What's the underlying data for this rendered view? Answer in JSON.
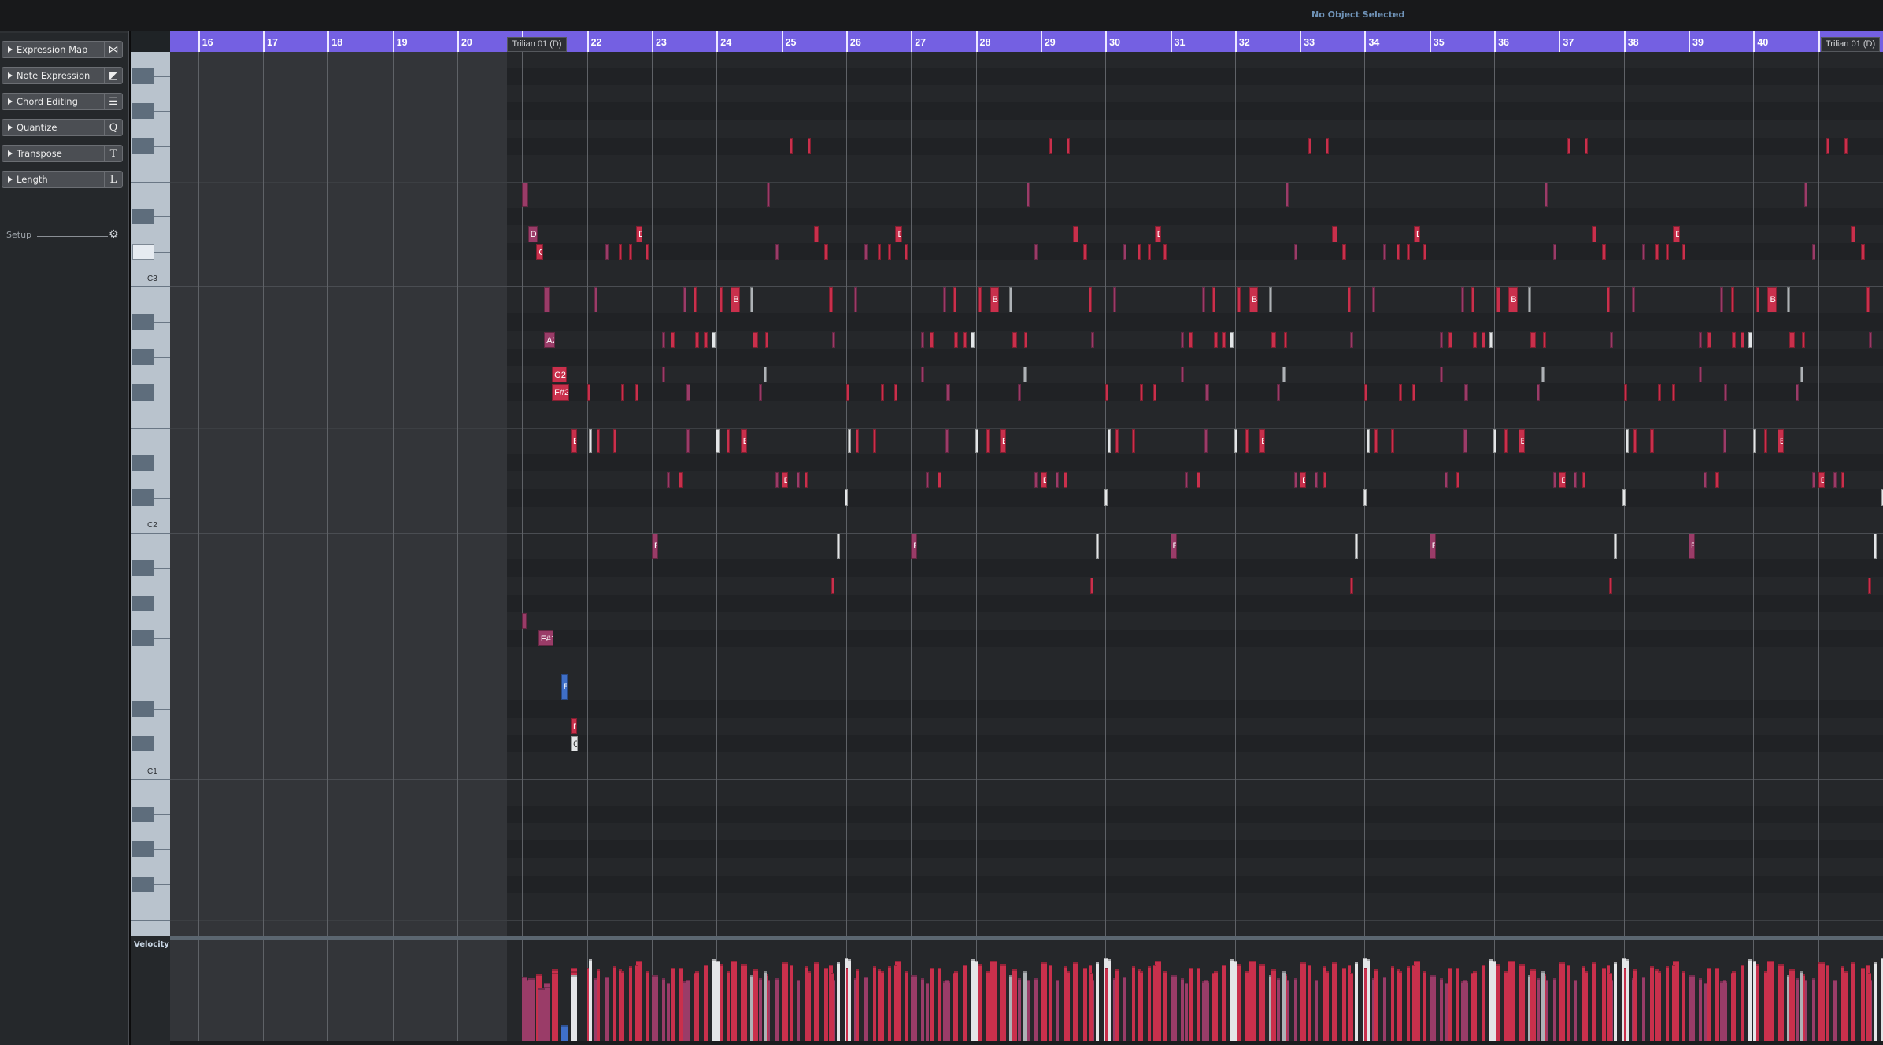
{
  "status": "No Object Selected",
  "inspector": {
    "sections": [
      {
        "label": "Expression Map",
        "icon": "⋈",
        "icon_name": "expression-map-icon"
      },
      {
        "label": "Note Expression",
        "icon": "◩",
        "icon_name": "note-expression-icon"
      },
      {
        "label": "Chord Editing",
        "icon": "☰",
        "icon_name": "chord-editing-icon"
      },
      {
        "label": "Quantize",
        "icon": "Q",
        "icon_name": "quantize-icon"
      },
      {
        "label": "Transpose",
        "icon": "T",
        "icon_name": "transpose-icon"
      },
      {
        "label": "Length",
        "icon": "L",
        "icon_name": "length-icon"
      }
    ],
    "setup_label": "Setup"
  },
  "ruler": {
    "bar_numbers": [
      16,
      17,
      18,
      19,
      20,
      22,
      23,
      24,
      25,
      26,
      27,
      28,
      29,
      30,
      31,
      32,
      33,
      34,
      35,
      36,
      37,
      38,
      39,
      40
    ],
    "ticks": [
      16,
      17,
      18,
      19,
      20,
      21,
      22,
      23,
      24,
      25,
      26,
      27,
      28,
      29,
      30,
      31,
      32,
      33,
      34,
      35,
      36,
      37,
      38,
      39,
      40,
      41
    ]
  },
  "parts": [
    {
      "name": "Trilian 01 (D)",
      "start_bar": 20.77
    },
    {
      "name": "Trilian 01 (D)",
      "start_bar": 41.04
    }
  ],
  "keyboard": {
    "octave_labels": [
      "C3",
      "C2",
      "C1"
    ],
    "highlighted_key": "C#3"
  },
  "velocity_label": "Velocity",
  "colors": {
    "ruler": "#7460e2",
    "note_red": "#c9304c",
    "note_purple": "#9a3c68",
    "note_white": "#e4e6e8",
    "note_grey": "#aeb2b6",
    "note_blue": "#3f6fc8"
  },
  "notes_intro": [
    [
      21.0,
      "E3",
      0.09,
      "p",
      "E",
      84
    ],
    [
      21.09,
      "D3",
      0.15,
      "p",
      "D",
      86
    ],
    [
      21.22,
      "C#3",
      0.1,
      "r",
      "C#",
      92
    ],
    [
      21.34,
      "B2",
      0.09,
      "p",
      "B",
      80
    ],
    [
      21.34,
      "A2",
      0.17,
      "p",
      "A2",
      74
    ],
    [
      21.46,
      "G2",
      0.23,
      "r",
      "G2",
      98
    ],
    [
      21.46,
      "F#2",
      0.27,
      "r",
      "F#2",
      94
    ],
    [
      21.75,
      "E2",
      0.1,
      "r",
      "E",
      100
    ],
    [
      21.0,
      "G1",
      0.07,
      "p",
      "G",
      88
    ],
    [
      21.25,
      "F#1",
      0.23,
      "p",
      "F#1",
      72
    ],
    [
      21.6,
      "E1",
      0.1,
      "b",
      "E",
      22
    ],
    [
      21.75,
      "D1",
      0.1,
      "r",
      "D",
      96
    ],
    [
      21.75,
      "C#1",
      0.11,
      "w",
      "C#",
      90
    ]
  ],
  "phrase": {
    "repeats_at_bars": [
      22,
      26,
      30,
      34,
      38,
      42
    ],
    "notes": [
      [
        3.13,
        "F#3",
        0.04,
        "r",
        "",
        104
      ],
      [
        3.4,
        "F#3",
        0.05,
        "r",
        "",
        96
      ],
      [
        2.78,
        "E3",
        0.04,
        "p",
        "",
        84
      ],
      [
        0.76,
        "D3",
        0.1,
        "r",
        "D",
        110
      ],
      [
        3.5,
        "D3",
        0.08,
        "r",
        "D",
        108
      ],
      [
        0.28,
        "C#3",
        0.04,
        "p",
        "",
        88
      ],
      [
        0.49,
        "C#3",
        0.04,
        "r",
        "",
        98
      ],
      [
        0.65,
        "C#3",
        0.04,
        "r",
        "",
        102
      ],
      [
        0.9,
        "C#3",
        0.05,
        "r",
        "",
        96
      ],
      [
        2.91,
        "C#3",
        0.04,
        "p",
        "",
        82
      ],
      [
        3.66,
        "C#3",
        0.06,
        "r",
        "",
        100
      ],
      [
        0.12,
        "B2",
        0.04,
        "p",
        "",
        86
      ],
      [
        1.49,
        "B2",
        0.04,
        "p",
        "",
        82
      ],
      [
        1.65,
        "B2",
        0.02,
        "r",
        "",
        94
      ],
      [
        2.04,
        "B2",
        0.05,
        "r",
        "",
        106
      ],
      [
        2.22,
        "B2",
        0.14,
        "r",
        "B2",
        110
      ],
      [
        2.52,
        "B2",
        0.02,
        "g",
        "",
        90
      ],
      [
        3.74,
        "B2",
        0.05,
        "r",
        "",
        104
      ],
      [
        1.16,
        "A2",
        0.04,
        "p",
        "",
        80
      ],
      [
        1.29,
        "A2",
        0.06,
        "r",
        "",
        100
      ],
      [
        1.67,
        "A2",
        0.06,
        "r",
        "",
        96
      ],
      [
        1.8,
        "A2",
        0.06,
        "r",
        "",
        104
      ],
      [
        1.92,
        "A2",
        0.06,
        "w",
        "",
        112
      ],
      [
        2.56,
        "A2",
        0.08,
        "r",
        "",
        98
      ],
      [
        2.75,
        "A2",
        0.05,
        "r",
        "",
        92
      ],
      [
        3.78,
        "A2",
        0.03,
        "p",
        "",
        84
      ],
      [
        1.16,
        "G2",
        0.04,
        "p",
        "",
        86
      ],
      [
        2.73,
        "G2",
        0.02,
        "g",
        "",
        96
      ],
      [
        0.0,
        "F#2",
        0.04,
        "r",
        "",
        100
      ],
      [
        0.53,
        "F#2",
        0.04,
        "r",
        "",
        96
      ],
      [
        0.74,
        "F#2",
        0.05,
        "r",
        "",
        104
      ],
      [
        1.54,
        "F#2",
        0.06,
        "p",
        "",
        82
      ],
      [
        2.65,
        "F#2",
        0.04,
        "p",
        "",
        86
      ],
      [
        0.03,
        "E2",
        0.04,
        "w",
        "",
        112
      ],
      [
        0.15,
        "E2",
        0.04,
        "r",
        "",
        98
      ],
      [
        0.41,
        "E2",
        0.05,
        "r",
        "",
        102
      ],
      [
        1.53,
        "E2",
        0.05,
        "p",
        "",
        84
      ],
      [
        1.99,
        "E2",
        0.05,
        "w",
        "",
        110
      ],
      [
        2.16,
        "E2",
        0.04,
        "r",
        "",
        96
      ],
      [
        2.37,
        "E2",
        0.1,
        "r",
        "E",
        106
      ],
      [
        1.23,
        "D2",
        0.04,
        "p",
        "",
        80
      ],
      [
        1.41,
        "D2",
        0.06,
        "r",
        "",
        100
      ],
      [
        2.91,
        "D2",
        0.04,
        "p",
        "",
        86
      ],
      [
        3.0,
        "D2",
        0.1,
        "r",
        "D",
        108
      ],
      [
        3.23,
        "D2",
        0.03,
        "p",
        "",
        84
      ],
      [
        3.36,
        "D2",
        0.05,
        "r",
        "",
        102
      ],
      [
        3.98,
        "C#2",
        0.03,
        "w",
        "",
        114
      ],
      [
        1.0,
        "B1",
        0.1,
        "p",
        "B",
        90
      ],
      [
        3.85,
        "B1",
        0.02,
        "w",
        "",
        108
      ],
      [
        3.77,
        "A1",
        0.02,
        "r",
        "",
        94
      ]
    ]
  }
}
